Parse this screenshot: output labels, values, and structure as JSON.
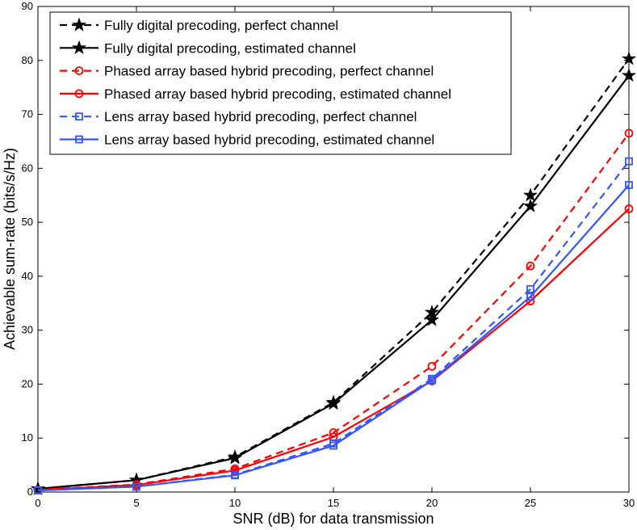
{
  "chart_data": {
    "type": "line",
    "title": "",
    "xlabel": "SNR (dB) for data transmission",
    "ylabel": "Achievable sum-rate (bits/s/Hz)",
    "xlim": [
      0,
      30
    ],
    "ylim": [
      0,
      90
    ],
    "xticks": [
      0,
      5,
      10,
      15,
      20,
      25,
      30
    ],
    "yticks": [
      0,
      10,
      20,
      30,
      40,
      50,
      60,
      70,
      80,
      90
    ],
    "grid": false,
    "legend_position": "top-left",
    "x": [
      0,
      5,
      10,
      15,
      20,
      25,
      30
    ],
    "series": [
      {
        "name": "Fully digital precoding, perfect channel",
        "color": "#000000",
        "dash": "dashed",
        "marker": "star",
        "values": [
          0.6,
          2.2,
          6.5,
          16.6,
          33.3,
          55.0,
          80.3
        ]
      },
      {
        "name": "Fully digital precoding, estimated channel",
        "color": "#000000",
        "dash": "solid",
        "marker": "star",
        "values": [
          0.6,
          2.2,
          6.3,
          16.4,
          31.9,
          53.0,
          77.2
        ]
      },
      {
        "name": "Phased array based hybrid precoding, perfect channel",
        "color": "#ff0000",
        "dash": "dashed",
        "marker": "circle",
        "values": [
          0.4,
          1.4,
          4.3,
          11.0,
          23.3,
          41.9,
          66.5
        ]
      },
      {
        "name": "Phased array based hybrid precoding, estimated channel",
        "color": "#ff0000",
        "dash": "solid",
        "marker": "circle",
        "values": [
          0.4,
          1.3,
          4.0,
          10.2,
          20.6,
          35.4,
          52.5
        ]
      },
      {
        "name": "Lens array based hybrid precoding, perfect channel",
        "color": "#3355ff",
        "dash": "dashed",
        "marker": "square",
        "values": [
          0.3,
          1.0,
          3.2,
          9.0,
          21.0,
          37.6,
          61.3
        ]
      },
      {
        "name": "Lens array based hybrid precoding, estimated channel",
        "color": "#3355ff",
        "dash": "solid",
        "marker": "square",
        "values": [
          0.3,
          1.0,
          3.1,
          8.6,
          20.7,
          36.2,
          56.9
        ]
      }
    ]
  }
}
